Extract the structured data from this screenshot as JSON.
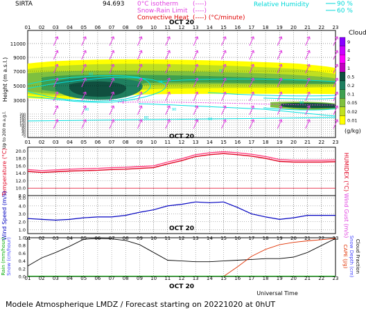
{
  "header": {
    "site": "SIRTA",
    "coord": "94.693",
    "legend": [
      {
        "label": "0°C isotherm",
        "sym": "(----)",
        "color": "#e040e0"
      },
      {
        "label": "Snow-Rain Limit",
        "sym": "(----)",
        "color": "#e040e0"
      },
      {
        "label": "Convective Heat",
        "sym": "(----) (°C/minute)",
        "color": "#e00000"
      },
      {
        "label": "Relative Humidity",
        "sym": "90 %",
        "color": "#00e0e0"
      },
      {
        "label": "",
        "sym": "60 %",
        "color": "#00e0e0"
      }
    ]
  },
  "hours": [
    "01",
    "02",
    "03",
    "04",
    "05",
    "06",
    "07",
    "08",
    "09",
    "10",
    "11",
    "12",
    "13",
    "14",
    "15",
    "16",
    "17",
    "18",
    "19",
    "20",
    "21",
    "22",
    "23"
  ],
  "date_label": "OCT 20",
  "footer": {
    "universal_time": "Universal Time",
    "title": "Modele Atmospherique LMDZ / Forecast starting on 20221020 at 0hUT"
  },
  "colors": {
    "cloud_scale": [
      "#8800ff",
      "#cc00ff",
      "#ff00ff",
      "#c000c0",
      "#104f3f",
      "#1f7f5f",
      "#3fa04f",
      "#7fc03f",
      "#c0e020",
      "#ffff00"
    ],
    "temp": "#e00020",
    "wind": "#0000c0",
    "rain": "#000000",
    "cape": "#e03000",
    "rh": "#00e0e0",
    "isotherm": "#e040e0"
  },
  "chart_data": [
    {
      "type": "heatmap",
      "panel": "clouds",
      "ylabel": "Height (m a.s.l.)",
      "ylabel2": "Up to 200 m a.g.l.",
      "yticks": [
        11000,
        9000,
        7000,
        5000,
        3000
      ],
      "yticks_low": [
        200,
        180,
        160,
        140,
        120,
        100,
        80,
        60,
        40,
        20,
        0
      ],
      "colorbar_title": "Clouds",
      "colorbar_unit": "(g/kg)",
      "colorbar_levels": [
        "9",
        "4",
        "2",
        "1",
        "0.5",
        "0.2",
        "0.1",
        "0.05",
        "0.02",
        "0.01"
      ],
      "isotherm_label": "0",
      "rh_labels": [
        "60",
        "90",
        "60",
        "90",
        "60",
        "90",
        "60",
        "90"
      ]
    },
    {
      "type": "line",
      "panel": "temperature",
      "ylabel": "Temperature (°C)",
      "ylabel2": "HUMIDEX (°C)",
      "yticks": [
        20.0,
        18.0,
        16.0,
        14.0,
        12.0,
        10.0,
        8.0
      ],
      "ylim": [
        8.0,
        21.0
      ],
      "series": [
        {
          "name": "Temperature",
          "values": [
            14.5,
            14.2,
            14.4,
            14.6,
            14.7,
            14.8,
            15.0,
            15.1,
            15.3,
            15.5,
            16.5,
            17.4,
            18.5,
            19.0,
            19.3,
            19.0,
            18.6,
            18.0,
            17.2,
            17.0,
            17.0,
            17.0,
            17.1
          ]
        },
        {
          "name": "Humidex",
          "values": [
            15.0,
            14.7,
            14.9,
            15.1,
            15.2,
            15.3,
            15.5,
            15.6,
            15.8,
            16.0,
            17.0,
            17.9,
            19.0,
            19.5,
            19.8,
            19.5,
            19.1,
            18.5,
            17.7,
            17.5,
            17.5,
            17.5,
            17.6
          ]
        }
      ]
    },
    {
      "type": "line",
      "panel": "wind",
      "ylabel": "Wind Speed (m/s)",
      "ylabel2": "Wind Gust (m/s)",
      "yticks": [
        5.0,
        4.0,
        3.0,
        2.0,
        1.0
      ],
      "ylim": [
        0.5,
        5.3
      ],
      "values": [
        2.4,
        2.3,
        2.2,
        2.3,
        2.5,
        2.6,
        2.6,
        2.8,
        3.2,
        3.5,
        4.0,
        4.2,
        4.5,
        4.4,
        4.5,
        3.8,
        3.0,
        2.6,
        2.3,
        2.5,
        2.8,
        2.8,
        2.8
      ]
    },
    {
      "type": "line",
      "panel": "precip",
      "ylabel": "Rain (mm/hour)",
      "ylabel_b": "Snow (cm/hour)",
      "ylabel2": "CAPE (J/g)",
      "ylabel2_b": "Snow Depth (cm)",
      "ylabel2_c": "Cloud Fraction",
      "yticks": [
        1.0,
        0.8,
        0.6,
        0.4,
        0.2,
        0.0
      ],
      "ylim": [
        0,
        1.0
      ],
      "series": [
        {
          "name": "Cloud Fraction",
          "values": [
            0.27,
            0.48,
            0.62,
            0.78,
            0.96,
            0.98,
            0.97,
            0.93,
            0.82,
            0.62,
            0.42,
            0.4,
            0.38,
            0.38,
            0.4,
            0.42,
            0.44,
            0.46,
            0.46,
            0.5,
            0.62,
            0.8,
            0.98
          ]
        },
        {
          "name": "CAPE",
          "values": [
            null,
            null,
            null,
            null,
            null,
            null,
            null,
            null,
            null,
            null,
            null,
            null,
            null,
            null,
            0.0,
            0.25,
            0.52,
            0.7,
            0.82,
            0.88,
            0.92,
            0.95,
            0.98
          ]
        }
      ]
    }
  ]
}
